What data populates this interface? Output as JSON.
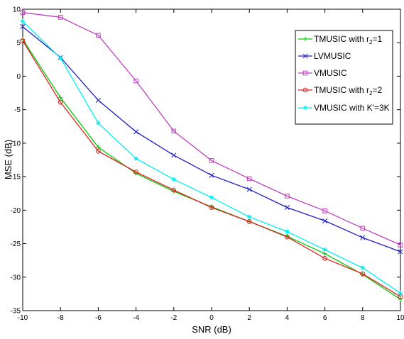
{
  "chart_data": {
    "type": "line",
    "title": "",
    "xlabel": "SNR (dB)",
    "ylabel": "MSE (dB)",
    "xlim": [
      -10,
      10
    ],
    "ylim": [
      -35,
      10
    ],
    "xticks": [
      -10,
      -8,
      -6,
      -4,
      -2,
      0,
      2,
      4,
      6,
      8,
      10
    ],
    "yticks": [
      10,
      5,
      0,
      -5,
      -10,
      -15,
      -20,
      -25,
      -30,
      -35
    ],
    "grid": false,
    "legend_position": "top-right",
    "x": [
      -10,
      -8,
      -6,
      -4,
      -2,
      0,
      2,
      4,
      6,
      8,
      10
    ],
    "series": [
      {
        "name_parts": [
          "TMUSIC with r",
          "2",
          "=1"
        ],
        "color": "#00cc00",
        "marker": "plus",
        "values": [
          5.5,
          -3.2,
          -10.6,
          -14.5,
          -17.2,
          -19.5,
          -21.7,
          -23.9,
          -26.5,
          -29.6,
          -33.3
        ]
      },
      {
        "name_parts": [
          "LVMUSIC"
        ],
        "color": "#1f1fbf",
        "marker": "x",
        "values": [
          7.4,
          2.8,
          -3.6,
          -8.3,
          -11.8,
          -14.8,
          -16.9,
          -19.6,
          -21.6,
          -24.1,
          -26.2
        ]
      },
      {
        "name_parts": [
          "VMUSIC"
        ],
        "color": "#bf3fbf",
        "marker": "square",
        "values": [
          9.5,
          8.8,
          6.1,
          -0.7,
          -8.2,
          -12.6,
          -15.3,
          -17.9,
          -20.1,
          -22.7,
          -25.2
        ]
      },
      {
        "name_parts": [
          "TMUSIC with r",
          "2",
          "=2"
        ],
        "color": "#dd2222",
        "marker": "circle",
        "values": [
          5.3,
          -3.9,
          -11.2,
          -14.3,
          -17.0,
          -19.6,
          -21.7,
          -24.0,
          -27.2,
          -29.5,
          -32.9
        ]
      },
      {
        "name_parts": [
          "VMUSIC with K'=3K"
        ],
        "color": "#00eeee",
        "marker": "star",
        "values": [
          8.2,
          2.7,
          -7.0,
          -12.3,
          -15.4,
          -18.1,
          -21.0,
          -23.2,
          -25.9,
          -28.6,
          -32.4
        ]
      }
    ]
  }
}
